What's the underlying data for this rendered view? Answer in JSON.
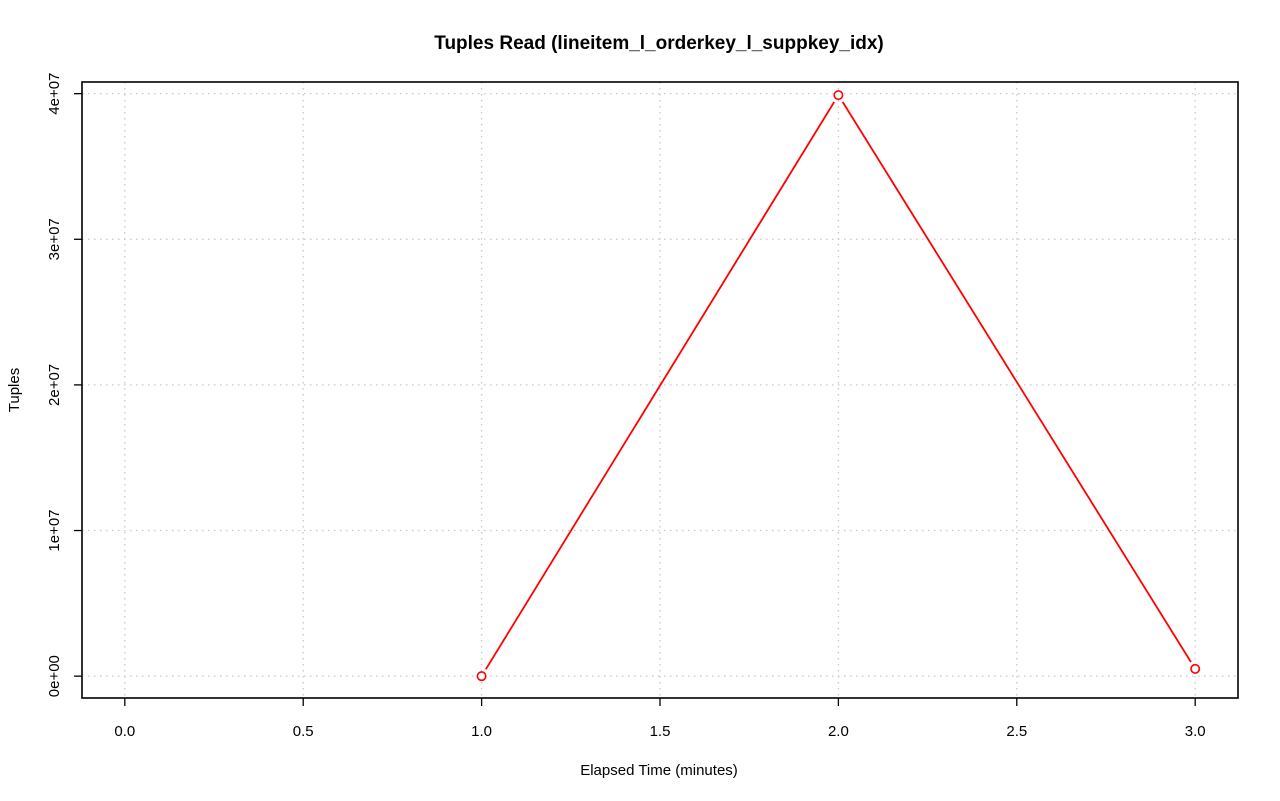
{
  "chart_data": {
    "type": "line",
    "title": "Tuples Read (lineitem_l_orderkey_l_suppkey_idx)",
    "xlabel": "Elapsed Time (minutes)",
    "ylabel": "Tuples",
    "xlim": [
      -0.12,
      3.12
    ],
    "ylim": [
      -1500000,
      40800000
    ],
    "xticks": [
      0.0,
      0.5,
      1.0,
      1.5,
      2.0,
      2.5,
      3.0
    ],
    "xtick_labels": [
      "0.0",
      "0.5",
      "1.0",
      "1.5",
      "2.0",
      "2.5",
      "3.0"
    ],
    "yticks": [
      0,
      10000000,
      20000000,
      30000000,
      40000000
    ],
    "ytick_labels": [
      "0e+00",
      "1e+07",
      "2e+07",
      "3e+07",
      "4e+07"
    ],
    "grid": true,
    "series": [
      {
        "color": "#ff0000",
        "x": [
          1.0,
          2.0,
          3.0
        ],
        "y": [
          0,
          39900000,
          500000
        ]
      }
    ]
  }
}
